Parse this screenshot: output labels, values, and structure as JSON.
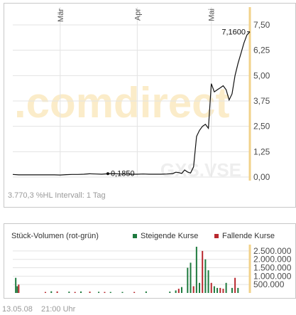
{
  "price_panel": {
    "footer_text": "3.770,3 %HL  Intervall: 1 Tag",
    "watermark_brand": ".comdirect",
    "watermark_symbol": "GXS.VSE"
  },
  "volume_panel": {
    "title": "Stück-Volumen (rot-grün)",
    "legend_up": "Steigende Kurse",
    "legend_down": "Fallende Kurse",
    "color_up": "#1e7a3e",
    "color_down": "#b8282e"
  },
  "footer": {
    "date": "13.05.08",
    "time": "21:00 Uhr"
  },
  "chart_data": [
    {
      "type": "line",
      "name": "price",
      "x_range": [
        0,
        80
      ],
      "ylim": [
        0,
        7.5
      ],
      "y_ticks": [
        0,
        1.25,
        2.5,
        3.75,
        5,
        6.25,
        7.5
      ],
      "y_tick_labels": [
        "0,00",
        "1,25",
        "2,50",
        "3,75",
        "5,00",
        "6,25",
        "7,50"
      ],
      "month_ticks": [
        {
          "x": 16,
          "label": "Mär"
        },
        {
          "x": 42,
          "label": "Apr"
        },
        {
          "x": 67,
          "label": "Mai"
        }
      ],
      "x": [
        0,
        2,
        4,
        6,
        8,
        10,
        12,
        14,
        16,
        18,
        20,
        22,
        24,
        26,
        28,
        30,
        32,
        34,
        36,
        38,
        40,
        42,
        44,
        46,
        48,
        50,
        52,
        54,
        55,
        56,
        57,
        58,
        59,
        60,
        61,
        62,
        63,
        64,
        65,
        66,
        67,
        68,
        69,
        70,
        71,
        72,
        73,
        74,
        75,
        76,
        77,
        78,
        79,
        80
      ],
      "values": [
        0.13,
        0.11,
        0.11,
        0.11,
        0.11,
        0.11,
        0.11,
        0.11,
        0.1,
        0.12,
        0.13,
        0.13,
        0.14,
        0.16,
        0.15,
        0.14,
        0.16,
        0.17,
        0.15,
        0.15,
        0.14,
        0.14,
        0.15,
        0.14,
        0.14,
        0.14,
        0.15,
        0.17,
        0.24,
        0.22,
        0.18,
        0.35,
        0.25,
        0.2,
        0.5,
        2.0,
        2.3,
        2.5,
        2.6,
        2.4,
        4.6,
        4.2,
        4.3,
        4.4,
        4.5,
        4.3,
        3.8,
        4.1,
        5.0,
        5.6,
        6.1,
        6.6,
        7.0,
        7.16
      ],
      "annotations": [
        {
          "x": 34,
          "y": 0.185,
          "label": "0,1850"
        },
        {
          "x": 80,
          "y": 7.16,
          "label": "7,1600"
        }
      ]
    },
    {
      "type": "bar",
      "name": "volume",
      "x_range": [
        0,
        80
      ],
      "ylim": [
        0,
        2750000
      ],
      "y_ticks": [
        500000,
        1000000,
        1500000,
        2000000,
        2500000
      ],
      "y_tick_labels": [
        "500.000",
        "1.000.000",
        "1.500.000",
        "2.000.000",
        "2.500.000"
      ],
      "up": [
        {
          "x": 1,
          "v": 900000
        },
        {
          "x": 1.5,
          "v": 400000
        },
        {
          "x": 13,
          "v": 100000
        },
        {
          "x": 19,
          "v": 80000
        },
        {
          "x": 23,
          "v": 90000
        },
        {
          "x": 29,
          "v": 70000
        },
        {
          "x": 33,
          "v": 60000
        },
        {
          "x": 37,
          "v": 60000
        },
        {
          "x": 45,
          "v": 90000
        },
        {
          "x": 53,
          "v": 80000
        },
        {
          "x": 55,
          "v": 150000
        },
        {
          "x": 57,
          "v": 350000
        },
        {
          "x": 59,
          "v": 1500000
        },
        {
          "x": 60,
          "v": 1800000
        },
        {
          "x": 62,
          "v": 2750000
        },
        {
          "x": 63,
          "v": 600000
        },
        {
          "x": 65,
          "v": 2000000
        },
        {
          "x": 66,
          "v": 1350000
        },
        {
          "x": 68,
          "v": 400000
        },
        {
          "x": 69,
          "v": 300000
        },
        {
          "x": 72,
          "v": 600000
        },
        {
          "x": 74,
          "v": 300000
        },
        {
          "x": 76,
          "v": 300000
        }
      ],
      "down": [
        {
          "x": 2,
          "v": 500000
        },
        {
          "x": 11,
          "v": 60000
        },
        {
          "x": 15,
          "v": 90000
        },
        {
          "x": 21,
          "v": 60000
        },
        {
          "x": 26,
          "v": 80000
        },
        {
          "x": 31,
          "v": 60000
        },
        {
          "x": 41,
          "v": 60000
        },
        {
          "x": 56,
          "v": 250000
        },
        {
          "x": 61,
          "v": 400000
        },
        {
          "x": 64,
          "v": 2500000
        },
        {
          "x": 67,
          "v": 600000
        },
        {
          "x": 70,
          "v": 300000
        },
        {
          "x": 71,
          "v": 250000
        },
        {
          "x": 75,
          "v": 900000
        }
      ]
    }
  ]
}
